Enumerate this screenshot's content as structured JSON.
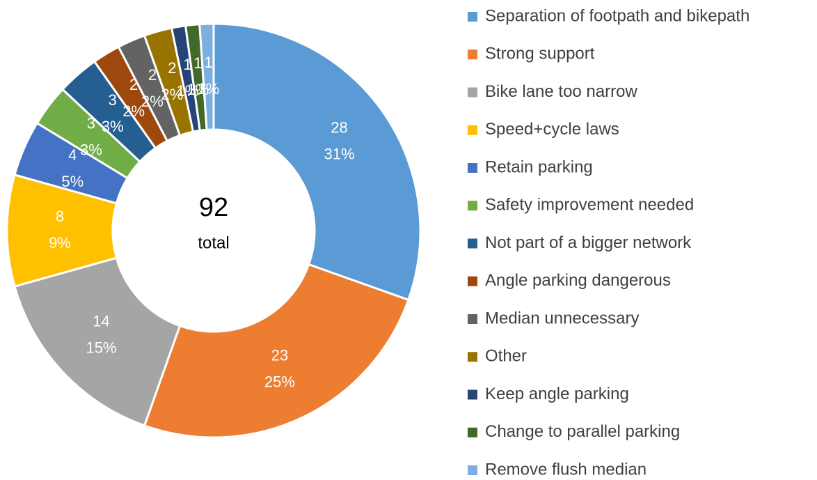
{
  "chart_data": {
    "type": "donut",
    "categories": [
      "Separation of footpath and bikepath",
      "Strong support",
      "Bike lane too narrow",
      "Speed+cycle laws",
      "Retain parking",
      "Safety improvement needed",
      "Not part of a bigger network",
      "Angle parking dangerous",
      "Median unnecessary",
      "Other",
      "Keep angle parking",
      "Change to parallel parking",
      "Remove flush median"
    ],
    "values": [
      28,
      23,
      14,
      8,
      4,
      3,
      3,
      2,
      2,
      2,
      1,
      1,
      1
    ],
    "percent_labels": [
      "31%",
      "25%",
      "15%",
      "9%",
      "5%",
      "3%",
      "3%",
      "2%",
      "2%",
      "2%",
      "1%",
      "1%",
      "1%"
    ],
    "colors": [
      "#5b9bd5",
      "#ed7d31",
      "#a5a5a5",
      "#ffc000",
      "#4472c4",
      "#70ad47",
      "#255e91",
      "#9e480e",
      "#636363",
      "#997300",
      "#264478",
      "#43682b",
      "#7cafdd"
    ],
    "total": 92,
    "total_label": "total",
    "legend": "right"
  }
}
